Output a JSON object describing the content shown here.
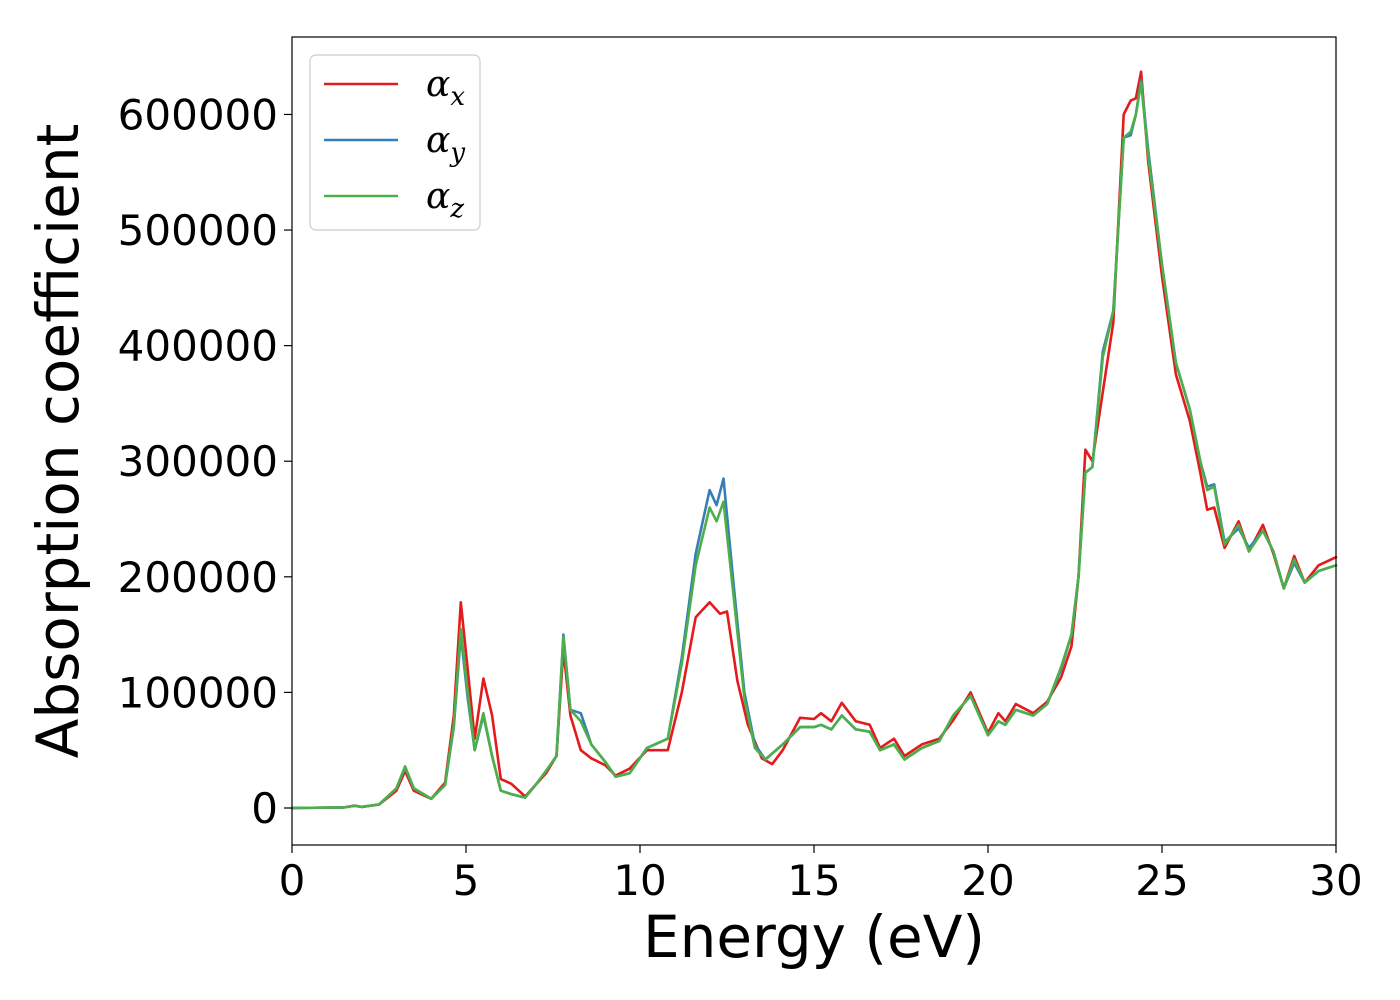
{
  "chart_data": {
    "type": "line",
    "title": "",
    "xlabel": "Energy (eV)",
    "ylabel": "Absorption coefficient",
    "xlim": [
      0,
      30
    ],
    "ylim": [
      -32000,
      667000
    ],
    "xticks": [
      0,
      5,
      10,
      15,
      20,
      25,
      30
    ],
    "xtick_labels": [
      "0",
      "5",
      "10",
      "15",
      "20",
      "25",
      "30"
    ],
    "yticks": [
      0,
      100000,
      200000,
      300000,
      400000,
      500000,
      600000
    ],
    "ytick_labels": [
      "0",
      "100000",
      "200000",
      "300000",
      "400000",
      "500000",
      "600000"
    ],
    "grid": false,
    "legend_position": "top-left",
    "series": [
      {
        "name": "αx",
        "symbol": "α",
        "subscript": "x",
        "color": "#e41a1c",
        "points": [
          [
            0,
            0
          ],
          [
            1.5,
            500
          ],
          [
            1.8,
            2000
          ],
          [
            2.0,
            1000
          ],
          [
            2.5,
            3000
          ],
          [
            3.0,
            15000
          ],
          [
            3.25,
            32000
          ],
          [
            3.5,
            15000
          ],
          [
            4.0,
            8000
          ],
          [
            4.4,
            22000
          ],
          [
            4.65,
            80000
          ],
          [
            4.85,
            178000
          ],
          [
            5.05,
            120000
          ],
          [
            5.25,
            60000
          ],
          [
            5.5,
            112000
          ],
          [
            5.75,
            80000
          ],
          [
            6.0,
            25000
          ],
          [
            6.3,
            21000
          ],
          [
            6.7,
            10000
          ],
          [
            7.0,
            20000
          ],
          [
            7.3,
            30000
          ],
          [
            7.6,
            45000
          ],
          [
            7.8,
            137000
          ],
          [
            8.0,
            80000
          ],
          [
            8.3,
            50000
          ],
          [
            8.6,
            43000
          ],
          [
            9.0,
            37000
          ],
          [
            9.3,
            28000
          ],
          [
            9.7,
            34000
          ],
          [
            10.2,
            50000
          ],
          [
            10.8,
            50000
          ],
          [
            11.2,
            100000
          ],
          [
            11.6,
            165000
          ],
          [
            12.0,
            178000
          ],
          [
            12.3,
            168000
          ],
          [
            12.5,
            170000
          ],
          [
            12.8,
            110000
          ],
          [
            13.1,
            72000
          ],
          [
            13.5,
            43000
          ],
          [
            13.8,
            38000
          ],
          [
            14.1,
            50000
          ],
          [
            14.6,
            78000
          ],
          [
            15.0,
            77000
          ],
          [
            15.2,
            82000
          ],
          [
            15.5,
            75000
          ],
          [
            15.8,
            91000
          ],
          [
            16.2,
            75000
          ],
          [
            16.6,
            72000
          ],
          [
            16.9,
            52000
          ],
          [
            17.3,
            60000
          ],
          [
            17.6,
            45000
          ],
          [
            18.1,
            55000
          ],
          [
            18.6,
            60000
          ],
          [
            19.0,
            76000
          ],
          [
            19.5,
            100000
          ],
          [
            20.0,
            65000
          ],
          [
            20.3,
            82000
          ],
          [
            20.5,
            75000
          ],
          [
            20.8,
            90000
          ],
          [
            21.3,
            82000
          ],
          [
            21.7,
            92000
          ],
          [
            22.1,
            113000
          ],
          [
            22.4,
            140000
          ],
          [
            22.6,
            200000
          ],
          [
            22.8,
            310000
          ],
          [
            23.0,
            300000
          ],
          [
            23.3,
            360000
          ],
          [
            23.6,
            420000
          ],
          [
            23.9,
            600000
          ],
          [
            24.1,
            612000
          ],
          [
            24.25,
            614000
          ],
          [
            24.4,
            637000
          ],
          [
            24.6,
            560000
          ],
          [
            25.0,
            460000
          ],
          [
            25.4,
            375000
          ],
          [
            25.8,
            335000
          ],
          [
            26.1,
            290000
          ],
          [
            26.3,
            258000
          ],
          [
            26.5,
            260000
          ],
          [
            26.8,
            225000
          ],
          [
            27.2,
            248000
          ],
          [
            27.5,
            222000
          ],
          [
            27.9,
            245000
          ],
          [
            28.2,
            220000
          ],
          [
            28.5,
            190000
          ],
          [
            28.8,
            218000
          ],
          [
            29.1,
            195000
          ],
          [
            29.5,
            210000
          ],
          [
            30,
            217000
          ]
        ]
      },
      {
        "name": "αy",
        "symbol": "α",
        "subscript": "y",
        "color": "#377eb8",
        "points": [
          [
            0,
            0
          ],
          [
            1.5,
            500
          ],
          [
            1.8,
            2000
          ],
          [
            2.0,
            1000
          ],
          [
            2.5,
            3000
          ],
          [
            3.0,
            17000
          ],
          [
            3.25,
            35000
          ],
          [
            3.5,
            17000
          ],
          [
            4.0,
            8000
          ],
          [
            4.4,
            20000
          ],
          [
            4.65,
            70000
          ],
          [
            4.85,
            150000
          ],
          [
            5.05,
            95000
          ],
          [
            5.25,
            50000
          ],
          [
            5.5,
            80000
          ],
          [
            5.75,
            45000
          ],
          [
            6.0,
            15000
          ],
          [
            6.3,
            12000
          ],
          [
            6.7,
            9000
          ],
          [
            7.0,
            20000
          ],
          [
            7.3,
            32000
          ],
          [
            7.6,
            45000
          ],
          [
            7.8,
            150000
          ],
          [
            8.0,
            85000
          ],
          [
            8.3,
            82000
          ],
          [
            8.6,
            55000
          ],
          [
            9.0,
            40000
          ],
          [
            9.3,
            27000
          ],
          [
            9.7,
            30000
          ],
          [
            10.2,
            52000
          ],
          [
            10.8,
            60000
          ],
          [
            11.2,
            130000
          ],
          [
            11.6,
            220000
          ],
          [
            12.0,
            275000
          ],
          [
            12.2,
            262000
          ],
          [
            12.4,
            285000
          ],
          [
            12.7,
            190000
          ],
          [
            13.0,
            100000
          ],
          [
            13.3,
            55000
          ],
          [
            13.6,
            42000
          ],
          [
            14.1,
            55000
          ],
          [
            14.6,
            70000
          ],
          [
            15.0,
            70000
          ],
          [
            15.2,
            72000
          ],
          [
            15.5,
            68000
          ],
          [
            15.8,
            80000
          ],
          [
            16.2,
            68000
          ],
          [
            16.6,
            66000
          ],
          [
            16.9,
            50000
          ],
          [
            17.3,
            55000
          ],
          [
            17.6,
            42000
          ],
          [
            18.1,
            52000
          ],
          [
            18.6,
            58000
          ],
          [
            19.0,
            80000
          ],
          [
            19.5,
            97000
          ],
          [
            20.0,
            63000
          ],
          [
            20.3,
            75000
          ],
          [
            20.5,
            72000
          ],
          [
            20.8,
            85000
          ],
          [
            21.3,
            80000
          ],
          [
            21.7,
            90000
          ],
          [
            22.1,
            120000
          ],
          [
            22.4,
            150000
          ],
          [
            22.6,
            200000
          ],
          [
            22.8,
            290000
          ],
          [
            23.0,
            295000
          ],
          [
            23.3,
            395000
          ],
          [
            23.6,
            430000
          ],
          [
            23.9,
            580000
          ],
          [
            24.1,
            582000
          ],
          [
            24.25,
            600000
          ],
          [
            24.4,
            630000
          ],
          [
            24.6,
            570000
          ],
          [
            25.0,
            470000
          ],
          [
            25.4,
            385000
          ],
          [
            25.8,
            345000
          ],
          [
            26.1,
            300000
          ],
          [
            26.3,
            278000
          ],
          [
            26.5,
            280000
          ],
          [
            26.8,
            230000
          ],
          [
            27.2,
            242000
          ],
          [
            27.5,
            225000
          ],
          [
            27.9,
            240000
          ],
          [
            28.2,
            222000
          ],
          [
            28.5,
            190000
          ],
          [
            28.8,
            212000
          ],
          [
            29.1,
            195000
          ],
          [
            29.5,
            205000
          ],
          [
            30,
            210000
          ]
        ]
      },
      {
        "name": "αz",
        "symbol": "α",
        "subscript": "z",
        "color": "#4daf4a",
        "points": [
          [
            0,
            0
          ],
          [
            1.5,
            500
          ],
          [
            1.8,
            2000
          ],
          [
            2.0,
            1000
          ],
          [
            2.5,
            3000
          ],
          [
            3.0,
            17000
          ],
          [
            3.25,
            36000
          ],
          [
            3.5,
            17000
          ],
          [
            4.0,
            8000
          ],
          [
            4.4,
            20000
          ],
          [
            4.65,
            72000
          ],
          [
            4.85,
            155000
          ],
          [
            5.05,
            100000
          ],
          [
            5.25,
            50000
          ],
          [
            5.5,
            82000
          ],
          [
            5.75,
            45000
          ],
          [
            6.0,
            15000
          ],
          [
            6.3,
            12000
          ],
          [
            6.7,
            9000
          ],
          [
            7.0,
            20000
          ],
          [
            7.3,
            32000
          ],
          [
            7.6,
            45000
          ],
          [
            7.8,
            148000
          ],
          [
            8.0,
            85000
          ],
          [
            8.3,
            75000
          ],
          [
            8.6,
            55000
          ],
          [
            9.0,
            40000
          ],
          [
            9.3,
            27000
          ],
          [
            9.7,
            30000
          ],
          [
            10.2,
            52000
          ],
          [
            10.8,
            60000
          ],
          [
            11.2,
            125000
          ],
          [
            11.6,
            210000
          ],
          [
            12.0,
            260000
          ],
          [
            12.2,
            248000
          ],
          [
            12.4,
            265000
          ],
          [
            12.7,
            180000
          ],
          [
            13.0,
            95000
          ],
          [
            13.3,
            52000
          ],
          [
            13.6,
            42000
          ],
          [
            14.1,
            55000
          ],
          [
            14.6,
            70000
          ],
          [
            15.0,
            70000
          ],
          [
            15.2,
            72000
          ],
          [
            15.5,
            68000
          ],
          [
            15.8,
            80000
          ],
          [
            16.2,
            68000
          ],
          [
            16.6,
            66000
          ],
          [
            16.9,
            50000
          ],
          [
            17.3,
            55000
          ],
          [
            17.6,
            42000
          ],
          [
            18.1,
            52000
          ],
          [
            18.6,
            58000
          ],
          [
            19.0,
            80000
          ],
          [
            19.5,
            97000
          ],
          [
            20.0,
            63000
          ],
          [
            20.3,
            75000
          ],
          [
            20.5,
            72000
          ],
          [
            20.8,
            85000
          ],
          [
            21.3,
            80000
          ],
          [
            21.7,
            90000
          ],
          [
            22.1,
            122000
          ],
          [
            22.4,
            150000
          ],
          [
            22.6,
            200000
          ],
          [
            22.8,
            290000
          ],
          [
            23.0,
            295000
          ],
          [
            23.3,
            390000
          ],
          [
            23.6,
            430000
          ],
          [
            23.9,
            580000
          ],
          [
            24.1,
            585000
          ],
          [
            24.25,
            600000
          ],
          [
            24.4,
            628000
          ],
          [
            24.6,
            565000
          ],
          [
            25.0,
            470000
          ],
          [
            25.4,
            385000
          ],
          [
            25.8,
            345000
          ],
          [
            26.1,
            300000
          ],
          [
            26.3,
            275000
          ],
          [
            26.5,
            278000
          ],
          [
            26.8,
            228000
          ],
          [
            27.2,
            245000
          ],
          [
            27.5,
            222000
          ],
          [
            27.9,
            240000
          ],
          [
            28.2,
            222000
          ],
          [
            28.5,
            190000
          ],
          [
            28.8,
            215000
          ],
          [
            29.1,
            195000
          ],
          [
            29.5,
            205000
          ],
          [
            30,
            210000
          ]
        ]
      }
    ]
  }
}
